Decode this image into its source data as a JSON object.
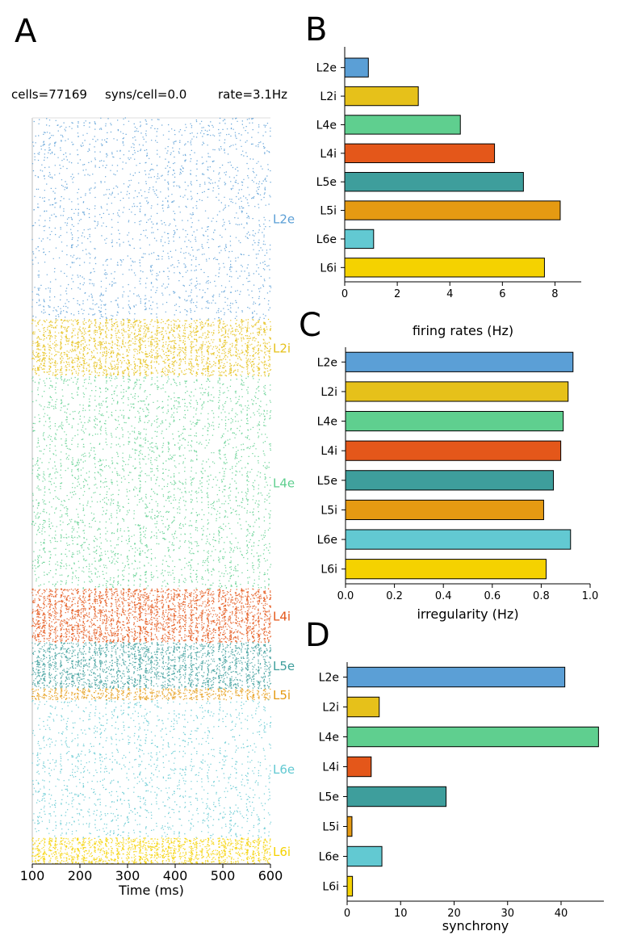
{
  "panel_labels": {
    "a": "A",
    "b": "B",
    "c": "C",
    "d": "D"
  },
  "raster_header": {
    "cells": "cells=77169",
    "syns": "syns/cell=0.0",
    "rate": "rate=3.1Hz"
  },
  "populations": [
    {
      "name": "L2e",
      "label": "L2e",
      "color": "#5b9fd6"
    },
    {
      "name": "L2i",
      "label": "L2i",
      "color": "#e6c11a"
    },
    {
      "name": "L4e",
      "label": "L4e",
      "color": "#5fcf8f"
    },
    {
      "name": "L4i",
      "label": "L4i",
      "color": "#e4571a"
    },
    {
      "name": "L5e",
      "label": "L5e",
      "color": "#3e9e9c"
    },
    {
      "name": "L5i",
      "label": "L5i",
      "color": "#e59a12"
    },
    {
      "name": "L6e",
      "label": "L6e",
      "color": "#62c9d2"
    },
    {
      "name": "L6i",
      "label": "L6i",
      "color": "#f5d200"
    }
  ],
  "chart_data": [
    {
      "id": "A",
      "type": "scatter",
      "title": "",
      "xlabel": "Time (ms)",
      "ylabel": "",
      "xlim": [
        100,
        600
      ],
      "xticks": [
        100,
        200,
        300,
        400,
        500,
        600
      ],
      "description": "spike raster by population (stacked top to bottom)",
      "layers": [
        {
          "name": "L2e",
          "share": 0.27,
          "density": 0.12
        },
        {
          "name": "L2i",
          "share": 0.076,
          "density": 0.55
        },
        {
          "name": "L4e",
          "share": 0.285,
          "density": 0.45
        },
        {
          "name": "L4i",
          "share": 0.072,
          "density": 0.7
        },
        {
          "name": "L5e",
          "share": 0.062,
          "density": 0.6
        },
        {
          "name": "L5i",
          "share": 0.015,
          "density": 0.7
        },
        {
          "name": "L6e",
          "share": 0.185,
          "density": 0.14
        },
        {
          "name": "L6i",
          "share": 0.035,
          "density": 0.75
        }
      ]
    },
    {
      "id": "B",
      "type": "bar",
      "orientation": "horizontal",
      "categories": [
        "L2e",
        "L2i",
        "L4e",
        "L4i",
        "L5e",
        "L5i",
        "L6e",
        "L6i"
      ],
      "values": [
        0.9,
        2.8,
        4.4,
        5.7,
        6.8,
        8.2,
        1.1,
        7.6
      ],
      "xlim": [
        0,
        9
      ],
      "xticks": [
        0,
        2,
        4,
        6,
        8
      ],
      "xticklabels": [
        "0",
        "2",
        "4",
        "6",
        "8"
      ],
      "xlabel": "firing rates (Hz)"
    },
    {
      "id": "C",
      "type": "bar",
      "orientation": "horizontal",
      "categories": [
        "L2e",
        "L2i",
        "L4e",
        "L4i",
        "L5e",
        "L5i",
        "L6e",
        "L6i"
      ],
      "values": [
        0.93,
        0.91,
        0.89,
        0.88,
        0.85,
        0.81,
        0.92,
        0.82
      ],
      "xlim": [
        0,
        1.0
      ],
      "xticks": [
        0,
        0.2,
        0.4,
        0.6,
        0.8,
        1.0
      ],
      "xticklabels": [
        "0.0",
        "0.2",
        "0.4",
        "0.6",
        "0.8",
        "1.0"
      ],
      "xlabel": "irregularity (Hz)"
    },
    {
      "id": "D",
      "type": "bar",
      "orientation": "horizontal",
      "categories": [
        "L2e",
        "L2i",
        "L4e",
        "L4i",
        "L5e",
        "L5i",
        "L6e",
        "L6i"
      ],
      "values": [
        40.7,
        6.0,
        47.0,
        4.5,
        18.5,
        0.9,
        6.5,
        1.0
      ],
      "xlim": [
        0,
        48
      ],
      "xticks": [
        0,
        10,
        20,
        30,
        40
      ],
      "xticklabels": [
        "0",
        "10",
        "20",
        "30",
        "40"
      ],
      "xlabel": "synchrony"
    }
  ]
}
